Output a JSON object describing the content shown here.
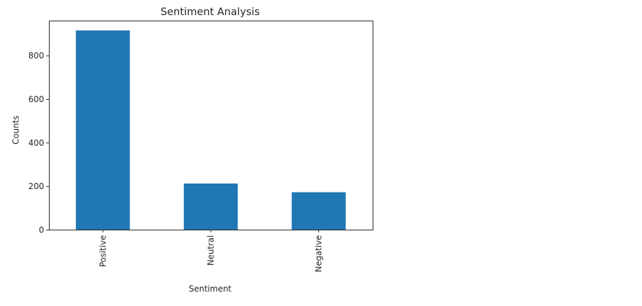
{
  "chart_data": {
    "type": "bar",
    "title": "Sentiment Analysis",
    "xlabel": "Sentiment",
    "ylabel": "Counts",
    "categories": [
      "Positive",
      "Neutral",
      "Negative"
    ],
    "values": [
      915,
      212,
      172
    ],
    "ylim": [
      0,
      960
    ],
    "yticks": [
      0,
      200,
      400,
      600,
      800
    ],
    "ytick_labels": [
      "0",
      "200",
      "400",
      "600",
      "800"
    ],
    "xtick_rotation": "vertical",
    "grid": false,
    "legend": "none",
    "bar_color": "#1f77b4",
    "axis_color": "#262626"
  }
}
